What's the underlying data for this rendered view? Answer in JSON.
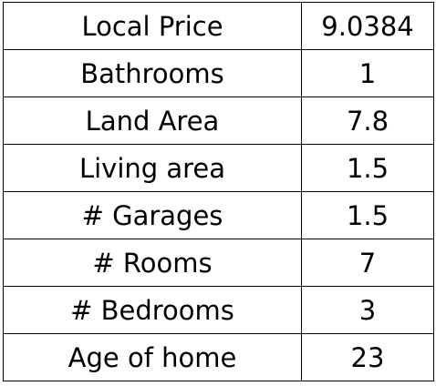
{
  "table": {
    "rows": [
      {
        "label": "Local Price",
        "value": "9.0384"
      },
      {
        "label": "Bathrooms",
        "value": "1"
      },
      {
        "label": "Land Area",
        "value": "7.8"
      },
      {
        "label": "Living area",
        "value": "1.5"
      },
      {
        "label": "# Garages",
        "value": "1.5"
      },
      {
        "label": "# Rooms",
        "value": "7"
      },
      {
        "label": "# Bedrooms",
        "value": "3"
      },
      {
        "label": "Age of home",
        "value": "23"
      }
    ]
  }
}
